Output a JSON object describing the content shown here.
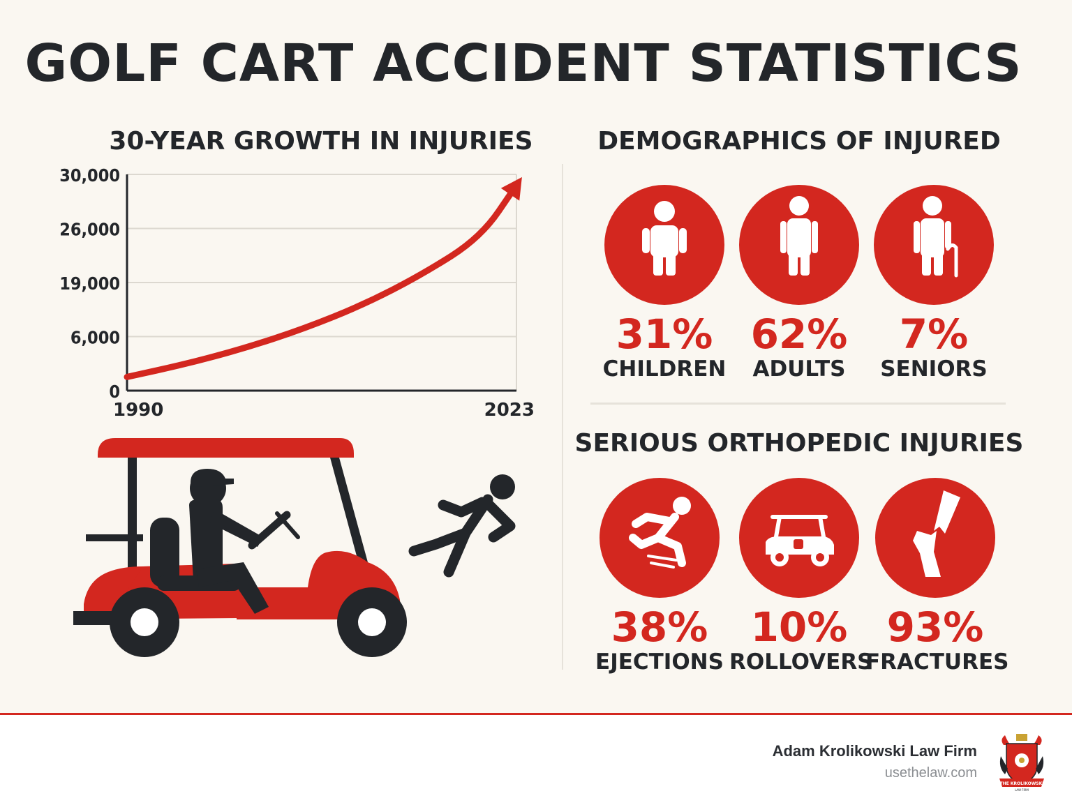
{
  "title": "GOLF CART ACCIDENT STATISTICS",
  "chart_section": {
    "title": "30-YEAR GROWTH IN INJURIES"
  },
  "chart_data": {
    "type": "line",
    "title": "30-YEAR GROWTH IN INJURIES",
    "x_tick_labels": [
      "1990",
      "2023"
    ],
    "y_tick_labels": [
      "0",
      "6,000",
      "19,000",
      "26,000",
      "30,000"
    ],
    "series": [
      {
        "x": [
          1990,
          1995,
          2000,
          2005,
          2010,
          2015,
          2020,
          2023
        ],
        "values": [
          1900,
          3700,
          5900,
          8600,
          11900,
          16100,
          21300,
          28500
        ]
      }
    ],
    "line_color": "#d3271f",
    "trend_arrow": true,
    "grid": true,
    "xlim": [
      1990,
      2023
    ],
    "ylim": [
      0,
      30000
    ]
  },
  "demographics": {
    "title": "DEMOGRAPHICS OF INJURED",
    "items": [
      {
        "value": "31%",
        "label": "CHILDREN",
        "icon": "child-icon"
      },
      {
        "value": "62%",
        "label": "ADULTS",
        "icon": "adult-icon"
      },
      {
        "value": "7%",
        "label": "SENIORS",
        "icon": "senior-icon"
      }
    ]
  },
  "orthopedic": {
    "title": "SERIOUS ORTHOPEDIC INJURIES",
    "items": [
      {
        "value": "38%",
        "label": "EJECTIONS",
        "icon": "falling-person-icon"
      },
      {
        "value": "10%",
        "label": "ROLLOVERS",
        "icon": "golf-cart-icon"
      },
      {
        "value": "93%",
        "label": "FRACTURES",
        "icon": "broken-bone-icon"
      }
    ]
  },
  "footer": {
    "firm_name": "Adam Krolikowski Law Firm",
    "url": "usethelaw.com",
    "logo_text": "THE KROLIKOWSKI",
    "logo_subtext": "LAW FIRM"
  },
  "colors": {
    "accent": "#d3271f",
    "dark": "#23262a",
    "background": "#faf7f1"
  }
}
